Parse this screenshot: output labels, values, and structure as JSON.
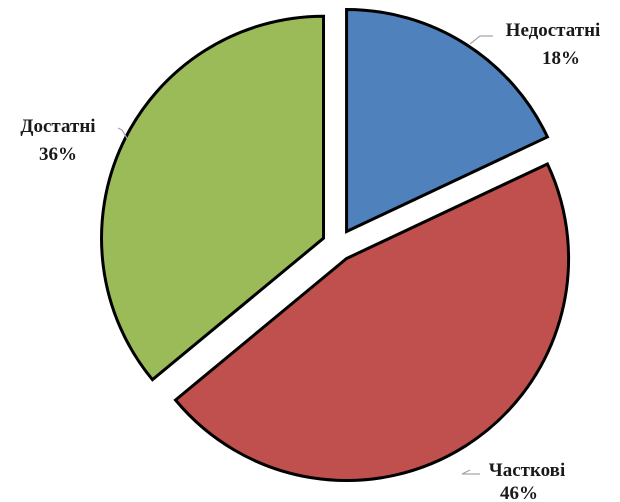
{
  "chart_data": {
    "type": "pie",
    "title": "",
    "slices": [
      {
        "label": "Недостатні",
        "value": 18,
        "value_label": "18%",
        "color": "#4f81bd"
      },
      {
        "label": "Часткові",
        "value": 46,
        "value_label": "46%",
        "color": "#c0504d"
      },
      {
        "label": "Достатні",
        "value": 36,
        "value_label": "36%",
        "color": "#9bbb59"
      }
    ],
    "exploded": true,
    "legend": "none"
  }
}
